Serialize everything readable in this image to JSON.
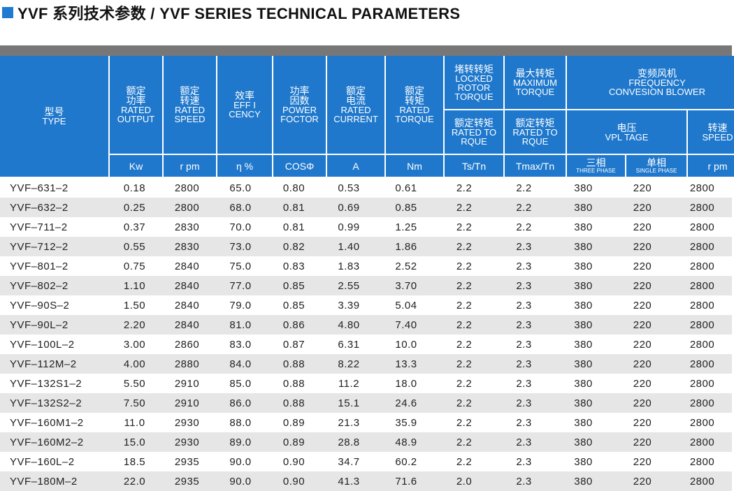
{
  "title": "YVF 系列技术参数 /  YVF SERIES TECHNICAL PARAMETERS",
  "header": {
    "type": [
      "型号",
      "TYPE"
    ],
    "rated_output": [
      "额定",
      "功率",
      "RATED",
      "OUTPUT"
    ],
    "rated_speed": [
      "额定",
      "转速",
      "RATED",
      "SPEED"
    ],
    "efficiency": [
      "效率",
      "EFF I",
      "CENCY"
    ],
    "power_factor": [
      "功率",
      "因数",
      "POWER",
      "FOCTOR"
    ],
    "rated_current": [
      "额定",
      "电流",
      "RATED",
      "CURRENT"
    ],
    "rated_torque": [
      "额定",
      "转矩",
      "RATED",
      "TORQUE"
    ],
    "locked_rotor_torque": [
      "堵转转矩",
      "LOCKED",
      "ROTOR",
      "TORQUE"
    ],
    "maximum_torque": [
      "最大转矩",
      "MAXIMUM",
      "TORQUE"
    ],
    "blower": [
      "变频风机",
      "FREQUENCY",
      "CONVESION BLOWER"
    ],
    "locked_ratio": [
      "额定转矩",
      "RATED TO",
      "RQUE"
    ],
    "max_ratio": [
      "额定转矩",
      "RATED TO",
      "RQUE"
    ],
    "voltage": [
      "电压",
      "VPL TAGE"
    ],
    "blower_speed": [
      "转速",
      "SPEED"
    ],
    "units": [
      "Kw",
      "r pm",
      "η %",
      "COSΦ",
      "A",
      "Nm",
      "Ts/Tn",
      "Tmax/Tn"
    ],
    "three_phase": [
      "三相",
      "THREE PHASE"
    ],
    "single_phase": [
      "单相",
      "SINGLE PHASE"
    ],
    "speed_unit": "r pm"
  },
  "rows": [
    [
      "YVF–631–2",
      "0.18",
      "2800",
      "65.0",
      "0.80",
      "0.53",
      "0.61",
      "2.2",
      "2.2",
      "380",
      "220",
      "2800"
    ],
    [
      "YVF–632–2",
      "0.25",
      "2800",
      "68.0",
      "0.81",
      "0.69",
      "0.85",
      "2.2",
      "2.2",
      "380",
      "220",
      "2800"
    ],
    [
      "YVF–711–2",
      "0.37",
      "2830",
      "70.0",
      "0.81",
      "0.99",
      "1.25",
      "2.2",
      "2.2",
      "380",
      "220",
      "2800"
    ],
    [
      "YVF–712–2",
      "0.55",
      "2830",
      "73.0",
      "0.82",
      "1.40",
      "1.86",
      "2.2",
      "2.3",
      "380",
      "220",
      "2800"
    ],
    [
      "YVF–801–2",
      "0.75",
      "2840",
      "75.0",
      "0.83",
      "1.83",
      "2.52",
      "2.2",
      "2.3",
      "380",
      "220",
      "2800"
    ],
    [
      "YVF–802–2",
      "1.10",
      "2840",
      "77.0",
      "0.85",
      "2.55",
      "3.70",
      "2.2",
      "2.3",
      "380",
      "220",
      "2800"
    ],
    [
      "YVF–90S–2",
      "1.50",
      "2840",
      "79.0",
      "0.85",
      "3.39",
      "5.04",
      "2.2",
      "2.3",
      "380",
      "220",
      "2800"
    ],
    [
      "YVF–90L–2",
      "2.20",
      "2840",
      "81.0",
      "0.86",
      "4.80",
      "7.40",
      "2.2",
      "2.3",
      "380",
      "220",
      "2800"
    ],
    [
      "YVF–100L–2",
      "3.00",
      "2860",
      "83.0",
      "0.87",
      "6.31",
      "10.0",
      "2.2",
      "2.3",
      "380",
      "220",
      "2800"
    ],
    [
      "YVF–112M–2",
      "4.00",
      "2880",
      "84.0",
      "0.88",
      "8.22",
      "13.3",
      "2.2",
      "2.3",
      "380",
      "220",
      "2800"
    ],
    [
      "YVF–132S1–2",
      "5.50",
      "2910",
      "85.0",
      "0.88",
      "11.2",
      "18.0",
      "2.2",
      "2.3",
      "380",
      "220",
      "2800"
    ],
    [
      "YVF–132S2–2",
      "7.50",
      "2910",
      "86.0",
      "0.88",
      "15.1",
      "24.6",
      "2.2",
      "2.3",
      "380",
      "220",
      "2800"
    ],
    [
      "YVF–160M1–2",
      "11.0",
      "2930",
      "88.0",
      "0.89",
      "21.3",
      "35.9",
      "2.2",
      "2.3",
      "380",
      "220",
      "2800"
    ],
    [
      "YVF–160M2–2",
      "15.0",
      "2930",
      "89.0",
      "0.89",
      "28.8",
      "48.9",
      "2.2",
      "2.3",
      "380",
      "220",
      "2800"
    ],
    [
      "YVF–160L–2",
      "18.5",
      "2935",
      "90.0",
      "0.90",
      "34.7",
      "60.2",
      "2.2",
      "2.3",
      "380",
      "220",
      "2800"
    ],
    [
      "YVF–180M–2",
      "22.0",
      "2935",
      "90.0",
      "0.90",
      "41.3",
      "71.6",
      "2.0",
      "2.3",
      "380",
      "220",
      "2800"
    ]
  ]
}
